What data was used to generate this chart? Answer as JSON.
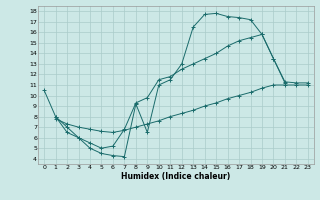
{
  "xlabel": "Humidex (Indice chaleur)",
  "bg_color": "#cce8e6",
  "line_color": "#1a6b6b",
  "grid_color": "#aaccca",
  "xlim": [
    -0.5,
    23.5
  ],
  "ylim": [
    3.5,
    18.5
  ],
  "xticks": [
    0,
    1,
    2,
    3,
    4,
    5,
    6,
    7,
    8,
    9,
    10,
    11,
    12,
    13,
    14,
    15,
    16,
    17,
    18,
    19,
    20,
    21,
    22,
    23
  ],
  "yticks": [
    4,
    5,
    6,
    7,
    8,
    9,
    10,
    11,
    12,
    13,
    14,
    15,
    16,
    17,
    18
  ],
  "line1_x": [
    0,
    1,
    2,
    3,
    4,
    5,
    6,
    7,
    8,
    9,
    10,
    11,
    12,
    13,
    14,
    15,
    16,
    17,
    18,
    19,
    20,
    21
  ],
  "line1_y": [
    10.5,
    8.0,
    6.5,
    6.0,
    5.0,
    4.5,
    4.3,
    4.2,
    9.2,
    6.5,
    11.0,
    11.5,
    13.0,
    16.5,
    17.7,
    17.8,
    17.5,
    17.4,
    17.2,
    15.8,
    13.5,
    11.2
  ],
  "line2_x": [
    1,
    2,
    3,
    4,
    5,
    6,
    7,
    8,
    9,
    10,
    11,
    12,
    13,
    14,
    15,
    16,
    17,
    18,
    19,
    20,
    21,
    22,
    23
  ],
  "line2_y": [
    7.8,
    7.3,
    7.0,
    6.8,
    6.6,
    6.5,
    6.7,
    7.0,
    7.3,
    7.6,
    8.0,
    8.3,
    8.6,
    9.0,
    9.3,
    9.7,
    10.0,
    10.3,
    10.7,
    11.0,
    11.0,
    11.0,
    11.0
  ],
  "line3_x": [
    1,
    2,
    3,
    4,
    5,
    6,
    7,
    8,
    9,
    10,
    11,
    12,
    13,
    14,
    15,
    16,
    17,
    18,
    19,
    20,
    21,
    22,
    23
  ],
  "line3_y": [
    8.0,
    7.0,
    6.0,
    5.5,
    5.0,
    5.2,
    6.8,
    9.3,
    9.8,
    11.5,
    11.8,
    12.5,
    13.0,
    13.5,
    14.0,
    14.7,
    15.2,
    15.5,
    15.8,
    13.5,
    11.3,
    11.2,
    11.2
  ]
}
